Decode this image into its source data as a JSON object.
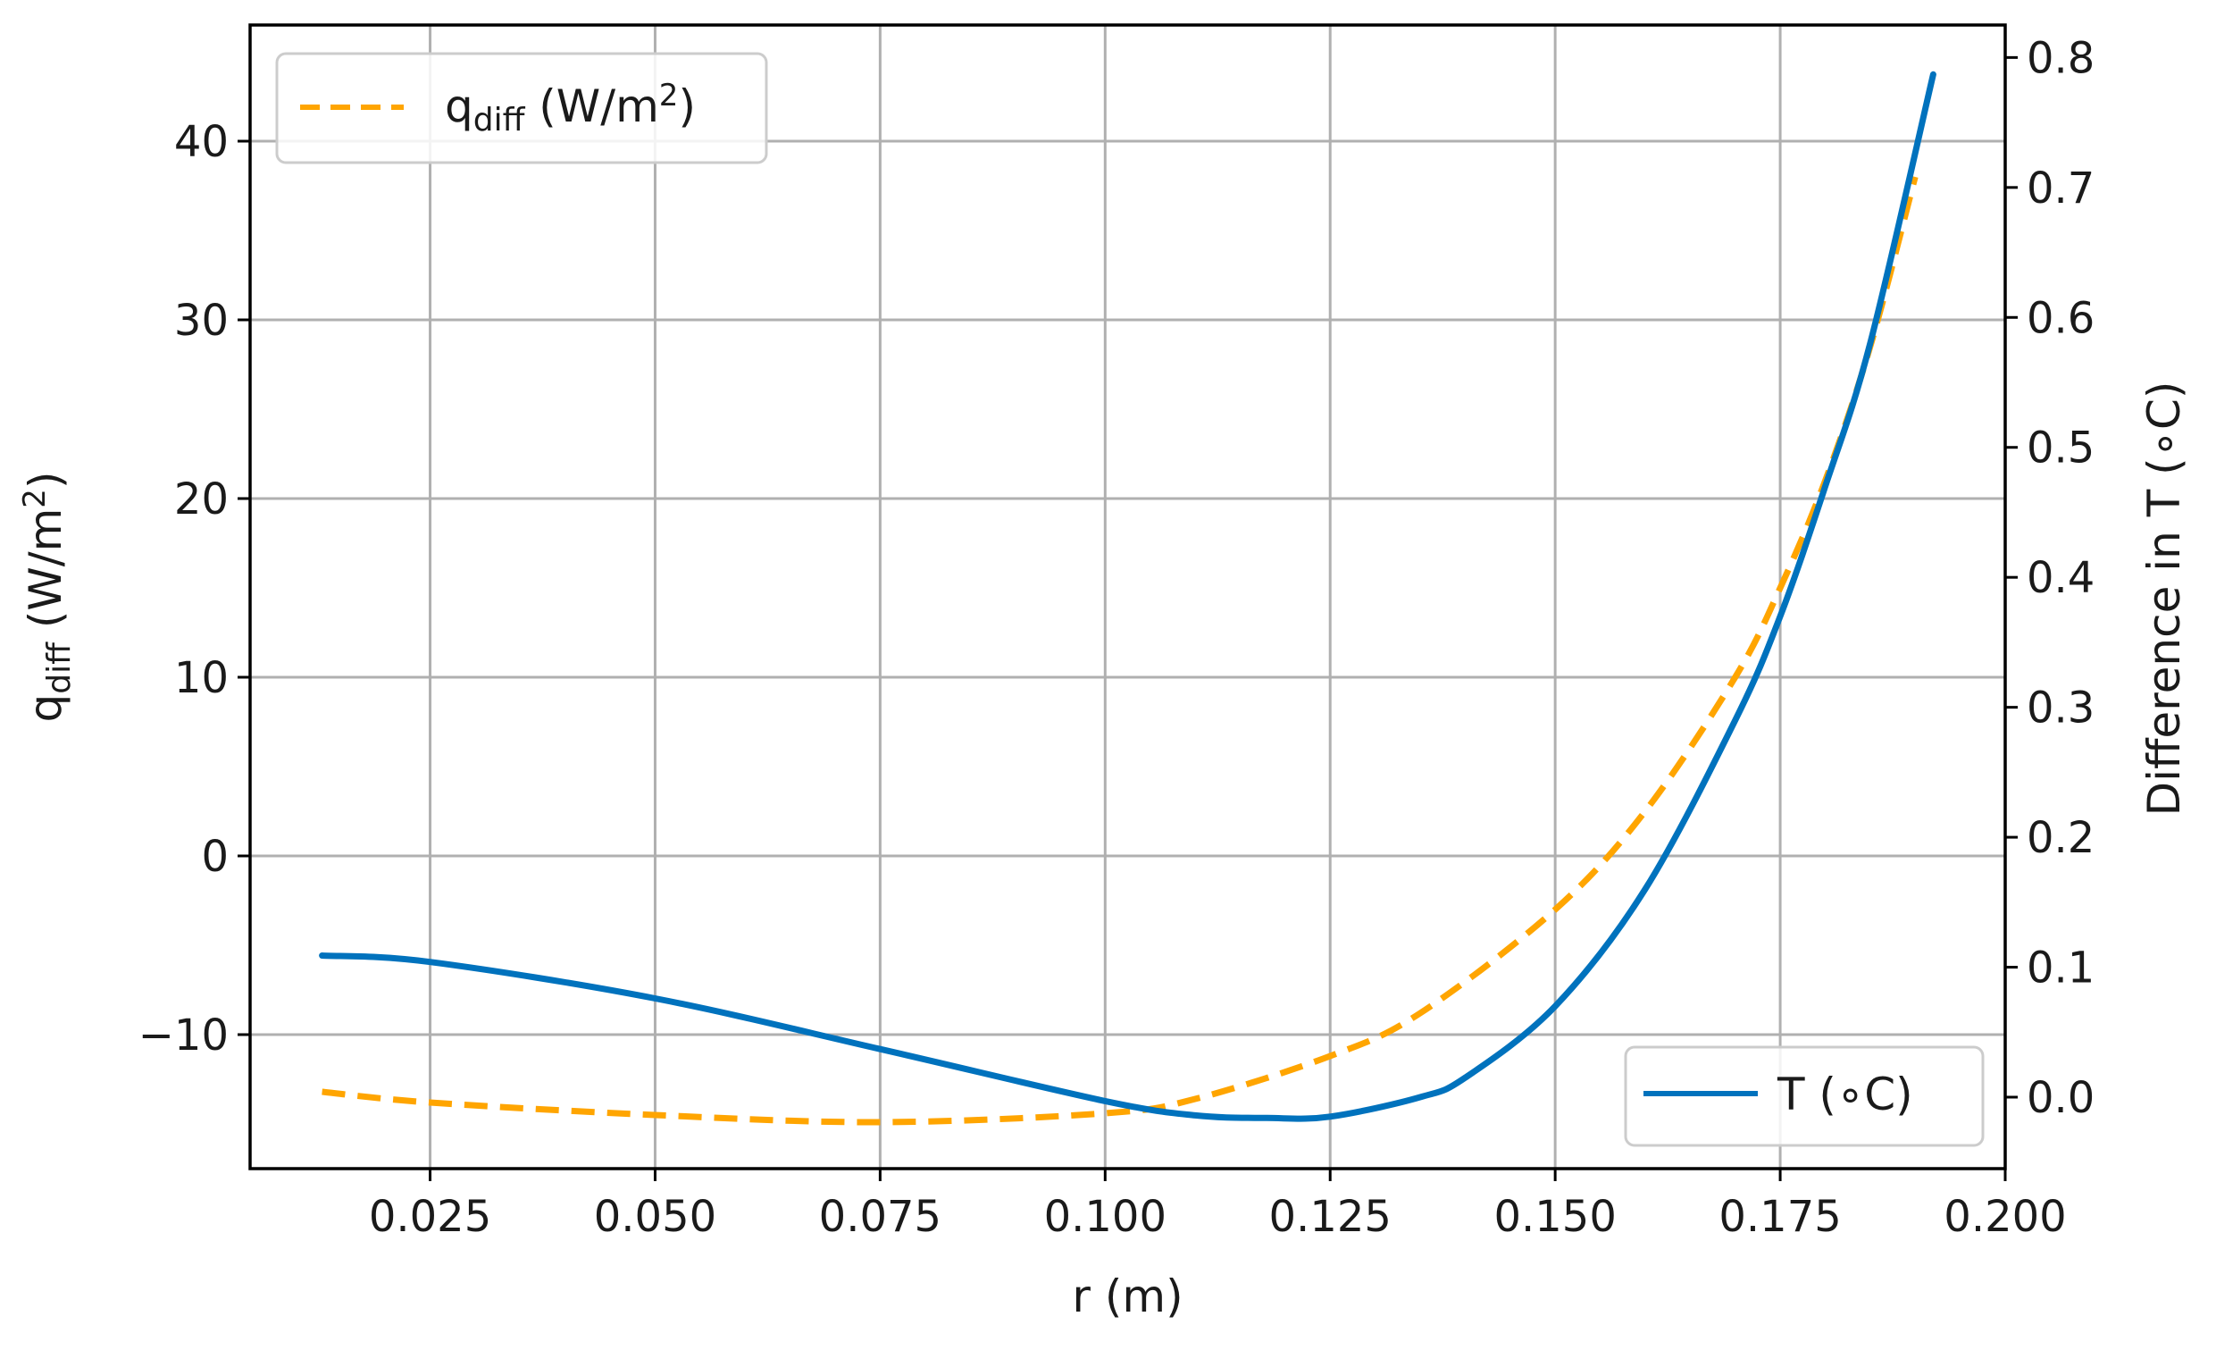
{
  "chart_data": {
    "type": "line",
    "xlabel": "r (m)",
    "ylabel_left": {
      "main": "q",
      "sub": "diff",
      "rest": " (W/m",
      "sup": "2",
      "end": ")"
    },
    "ylabel_right": "Difference in T (∘C)",
    "xlim": [
      0.005,
      0.2
    ],
    "ylim_left": [
      -17.5,
      46.5
    ],
    "ylim_right": [
      -0.055,
      0.825
    ],
    "x_ticks": [
      "0.025",
      "0.050",
      "0.075",
      "0.100",
      "0.125",
      "0.150",
      "0.175",
      "0.200"
    ],
    "y_left_ticks": [
      "−10",
      "0",
      "10",
      "20",
      "30",
      "40"
    ],
    "y_right_ticks": [
      "0.0",
      "0.1",
      "0.2",
      "0.3",
      "0.4",
      "0.5",
      "0.6",
      "0.7",
      "0.8"
    ],
    "grid": true,
    "series": [
      {
        "name": "q_diff (W/m2)",
        "legend": {
          "main": "q",
          "sub": "diff",
          "rest": " (W/m",
          "sup": "2",
          "end": ")"
        },
        "axis": "left",
        "color": "#FFA500",
        "style": "dashed",
        "legend_position": "upper left",
        "x": [
          0.013,
          0.025,
          0.05,
          0.075,
          0.1,
          0.11,
          0.125,
          0.135,
          0.15,
          0.16,
          0.17,
          0.175,
          0.18,
          0.185,
          0.19
        ],
        "y": [
          -13.2,
          -13.8,
          -14.5,
          -14.9,
          -14.4,
          -13.6,
          -11.2,
          -8.8,
          -3.0,
          2.5,
          10.0,
          15.0,
          21.0,
          28.5,
          38.0
        ]
      },
      {
        "name": "T (∘C)",
        "legend": {
          "main": "T (∘C)"
        },
        "axis": "right",
        "color": "#0072BD",
        "style": "solid",
        "legend_position": "lower right",
        "x": [
          0.013,
          0.025,
          0.05,
          0.075,
          0.1,
          0.11,
          0.118,
          0.125,
          0.135,
          0.14,
          0.15,
          0.16,
          0.17,
          0.175,
          0.18,
          0.185,
          0.192
        ],
        "y": [
          0.109,
          0.104,
          0.076,
          0.037,
          -0.003,
          -0.014,
          -0.016,
          -0.015,
          0.0,
          0.015,
          0.07,
          0.16,
          0.29,
          0.37,
          0.47,
          0.58,
          0.787
        ]
      }
    ]
  }
}
